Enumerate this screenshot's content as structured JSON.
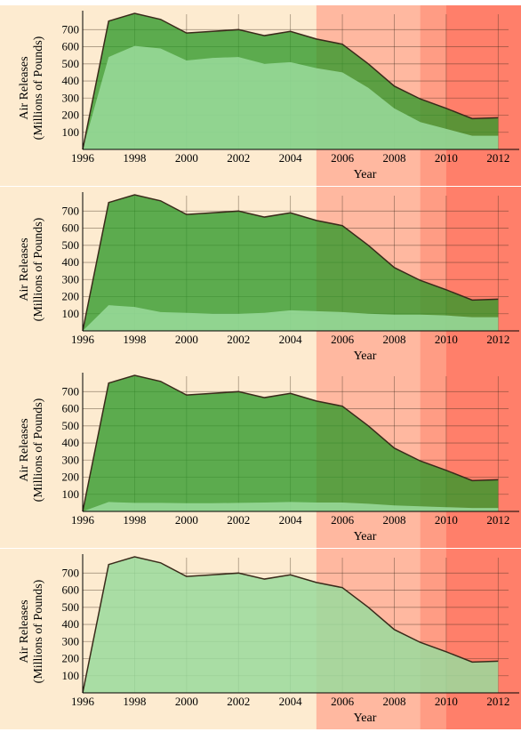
{
  "chart_data": [
    {
      "type": "area",
      "x": [
        1996,
        1997,
        1998,
        1999,
        2000,
        2001,
        2002,
        2003,
        2004,
        2005,
        2006,
        2007,
        2008,
        2009,
        2010,
        2011,
        2012
      ],
      "series": [
        {
          "values": [
            0,
            540,
            605,
            590,
            520,
            535,
            540,
            500,
            510,
            475,
            450,
            360,
            240,
            160,
            120,
            80,
            80
          ]
        },
        {
          "values": [
            0,
            750,
            795,
            760,
            680,
            690,
            700,
            665,
            690,
            645,
            615,
            500,
            370,
            295,
            240,
            180,
            185
          ]
        }
      ],
      "xlabel": "Year",
      "ylabel": "Air Releases (Millions of Pounds)",
      "ylabel_lines": [
        "Air Releases",
        "(Millions of Pounds)"
      ],
      "xticks": [
        1996,
        1998,
        2000,
        2002,
        2004,
        2006,
        2008,
        2010,
        2012
      ],
      "yticks": [
        100,
        200,
        300,
        400,
        500,
        600,
        700
      ],
      "xlim": [
        1996,
        2012.4
      ],
      "ylim": [
        0,
        790
      ],
      "grid": true,
      "colors": {
        "dark": "#2e9929",
        "light": "#9adb9c",
        "line": "#3a2a1a"
      }
    },
    {
      "type": "area",
      "x": [
        1996,
        1997,
        1998,
        1999,
        2000,
        2001,
        2002,
        2003,
        2004,
        2005,
        2006,
        2007,
        2008,
        2009,
        2010,
        2011,
        2012
      ],
      "series": [
        {
          "values": [
            0,
            150,
            140,
            110,
            105,
            100,
            100,
            105,
            120,
            115,
            110,
            100,
            95,
            95,
            90,
            80,
            80
          ]
        },
        {
          "values": [
            0,
            750,
            795,
            760,
            680,
            690,
            700,
            665,
            690,
            645,
            615,
            500,
            370,
            295,
            240,
            180,
            185
          ]
        }
      ],
      "xlabel": "Year",
      "ylabel": "Air Releases (Millions of Pounds)",
      "ylabel_lines": [
        "Air Releases",
        "(Millions of Pounds)"
      ],
      "xticks": [
        1996,
        1998,
        2000,
        2002,
        2004,
        2006,
        2008,
        2010,
        2012
      ],
      "yticks": [
        100,
        200,
        300,
        400,
        500,
        600,
        700
      ],
      "xlim": [
        1996,
        2012.4
      ],
      "ylim": [
        0,
        790
      ],
      "grid": true,
      "colors": {
        "dark": "#2e9929",
        "light": "#9adb9c",
        "line": "#3a2a1a"
      }
    },
    {
      "type": "area",
      "x": [
        1996,
        1997,
        1998,
        1999,
        2000,
        2001,
        2002,
        2003,
        2004,
        2005,
        2006,
        2007,
        2008,
        2009,
        2010,
        2011,
        2012
      ],
      "series": [
        {
          "values": [
            0,
            55,
            50,
            50,
            48,
            48,
            50,
            52,
            55,
            52,
            52,
            45,
            35,
            30,
            25,
            20,
            20
          ]
        },
        {
          "values": [
            0,
            750,
            795,
            760,
            680,
            690,
            700,
            665,
            690,
            645,
            615,
            500,
            370,
            295,
            240,
            180,
            185
          ]
        }
      ],
      "xlabel": "Year",
      "ylabel": "Air Releases (Millions of Pounds)",
      "ylabel_lines": [
        "Air Releases",
        "(Millions of Pounds)"
      ],
      "xticks": [
        1996,
        1998,
        2000,
        2002,
        2004,
        2006,
        2008,
        2010,
        2012
      ],
      "yticks": [
        100,
        200,
        300,
        400,
        500,
        600,
        700
      ],
      "xlim": [
        1996,
        2012.4
      ],
      "ylim": [
        0,
        790
      ],
      "grid": true,
      "colors": {
        "dark": "#2e9929",
        "light": "#9adb9c",
        "line": "#3a2a1a"
      }
    },
    {
      "type": "area",
      "x": [
        1996,
        1997,
        1998,
        1999,
        2000,
        2001,
        2002,
        2003,
        2004,
        2005,
        2006,
        2007,
        2008,
        2009,
        2010,
        2011,
        2012
      ],
      "series": [
        {
          "values": [
            0,
            750,
            795,
            760,
            680,
            690,
            700,
            665,
            690,
            645,
            615,
            500,
            370,
            295,
            240,
            180,
            185
          ]
        }
      ],
      "xlabel": "Year",
      "ylabel": "Air Releases (Millions of Pounds)",
      "ylabel_lines": [
        "Air Releases",
        "(Millions of Pounds)"
      ],
      "xticks": [
        1996,
        1998,
        2000,
        2002,
        2004,
        2006,
        2008,
        2010,
        2012
      ],
      "yticks": [
        100,
        200,
        300,
        400,
        500,
        600,
        700
      ],
      "xlim": [
        1996,
        2012.4
      ],
      "ylim": [
        0,
        790
      ],
      "grid": true,
      "colors": {
        "dark": "#2e9929",
        "light": "#9adb9c",
        "line": "#3a2a1a"
      }
    }
  ],
  "shading": {
    "bands": [
      {
        "from": 2005,
        "to": 2009,
        "color": "#ffb8a0"
      },
      {
        "from": 2009,
        "to": 2010,
        "color": "#ff9c84"
      },
      {
        "from": 2010,
        "to": 2012.4,
        "color": "#ff7f6a"
      }
    ]
  }
}
